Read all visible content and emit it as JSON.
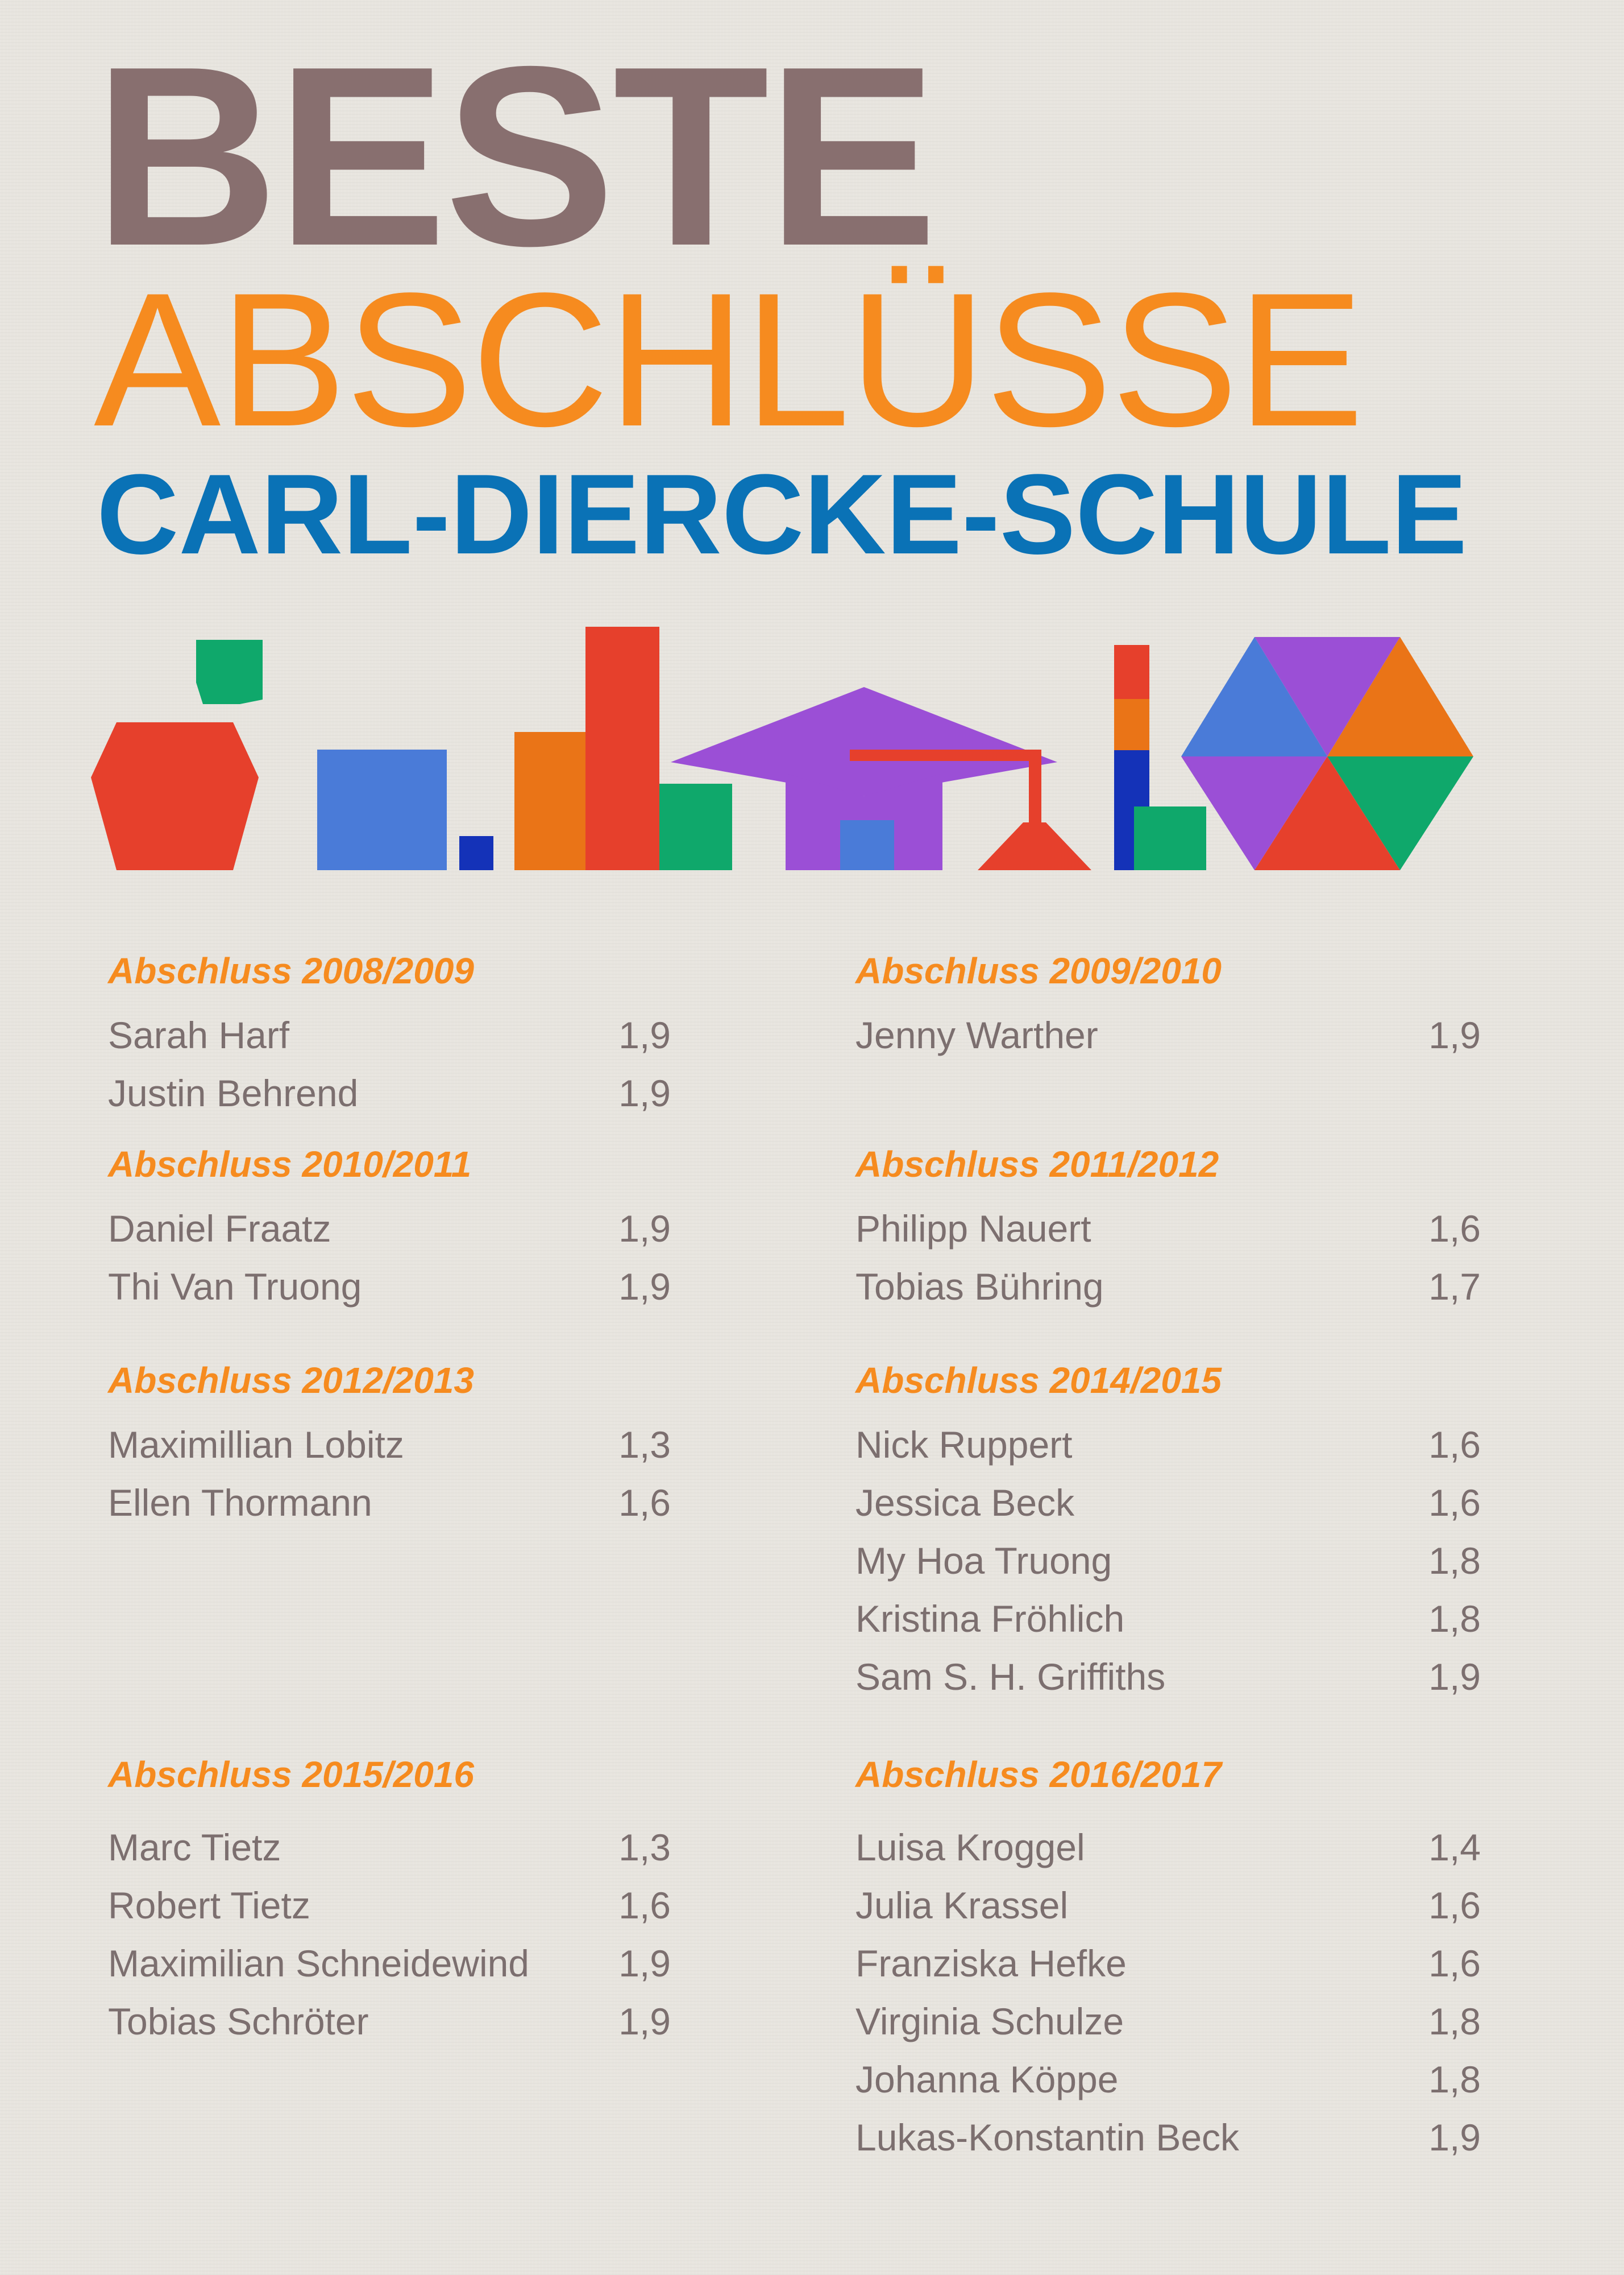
{
  "title": {
    "line1": "BESTE",
    "line2": "ABSCHLÜSSE",
    "line3": "CARL-DIERCKE-SCHULE"
  },
  "colors": {
    "title1": "#886f6f",
    "title2": "#f68b1f",
    "title3": "#0a72b6",
    "heading": "#f68b1f",
    "text": "#7c6f6f"
  },
  "illustration": {
    "icons": [
      "apple-icon",
      "book-stack-icon",
      "graduation-cap-icon",
      "flask-icon",
      "pencil-icon",
      "hexagon-icon"
    ]
  },
  "sections": [
    {
      "heading": "Abschluss 2008/2009",
      "entries": [
        {
          "name": "Sarah Harf",
          "grade": "1,9"
        },
        {
          "name": "Justin Behrend",
          "grade": "1,9"
        }
      ]
    },
    {
      "heading": "Abschluss 2009/2010",
      "entries": [
        {
          "name": "Jenny Warther",
          "grade": "1,9"
        }
      ]
    },
    {
      "heading": "Abschluss 2010/2011",
      "entries": [
        {
          "name": "Daniel Fraatz",
          "grade": "1,9"
        },
        {
          "name": "Thi Van Truong",
          "grade": "1,9"
        }
      ]
    },
    {
      "heading": "Abschluss 2011/2012",
      "entries": [
        {
          "name": "Philipp Nauert",
          "grade": "1,6"
        },
        {
          "name": "Tobias Bühring",
          "grade": "1,7"
        }
      ]
    },
    {
      "heading": "Abschluss 2012/2013",
      "entries": [
        {
          "name": "Maximillian Lobitz",
          "grade": "1,3"
        },
        {
          "name": "Ellen Thormann",
          "grade": "1,6"
        }
      ]
    },
    {
      "heading": "Abschluss 2014/2015",
      "entries": [
        {
          "name": "Nick Ruppert",
          "grade": "1,6"
        },
        {
          "name": "Jessica Beck",
          "grade": "1,6"
        },
        {
          "name": "My Hoa Truong",
          "grade": "1,8"
        },
        {
          "name": "Kristina Fröhlich",
          "grade": "1,8"
        },
        {
          "name": "Sam S. H. Griffiths",
          "grade": "1,9"
        }
      ]
    },
    {
      "heading": "Abschluss 2015/2016",
      "entries": [
        {
          "name": "Marc Tietz",
          "grade": "1,3"
        },
        {
          "name": "Robert Tietz",
          "grade": "1,6"
        },
        {
          "name": "Maximilian Schneidewind",
          "grade": "1,9"
        },
        {
          "name": "Tobias Schröter",
          "grade": "1,9"
        }
      ]
    },
    {
      "heading": "Abschluss 2016/2017",
      "entries": [
        {
          "name": "Luisa Kroggel",
          "grade": "1,4"
        },
        {
          "name": "Julia Krassel",
          "grade": "1,6"
        },
        {
          "name": "Franziska Hefke",
          "grade": "1,6"
        },
        {
          "name": "Virginia Schulze",
          "grade": "1,8"
        },
        {
          "name": "Johanna Köppe",
          "grade": "1,8"
        },
        {
          "name": "Lukas-Konstantin Beck",
          "grade": "1,9"
        }
      ]
    }
  ]
}
